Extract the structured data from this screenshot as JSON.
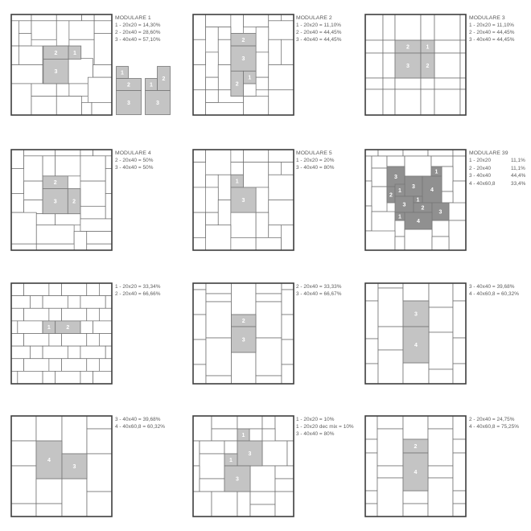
{
  "colors": {
    "tile_highlight": "#c4c4c4",
    "tile_highlight_dark": "#909090",
    "tile_line": "#6a6a6a",
    "border": "#3e3e3e",
    "text": "#5a5a5a"
  },
  "panels": [
    {
      "title": "MODULARE 1",
      "lines": [
        "1 - 20x20 = 14,30%",
        "2 - 20x40 = 28,60%",
        "3 - 40x40 = 57,10%"
      ],
      "tile_labels": [
        "2",
        "1",
        "3"
      ],
      "extra_pieces": [
        {
          "tile_labels": [
            "1",
            "2",
            "3"
          ]
        },
        {
          "tile_labels": [
            "1",
            "2",
            "3"
          ]
        }
      ]
    },
    {
      "title": "MODULARE 2",
      "lines": [
        "1 - 20x20 = 11,10%",
        "2 - 20x40 = 44,45%",
        "3 - 40x40 = 44,45%"
      ],
      "tile_labels": [
        "2",
        "3",
        "2",
        "1"
      ]
    },
    {
      "title": "MODULARE 3",
      "lines": [
        "1 - 20x20 = 11,10%",
        "2 - 20x40 = 44,45%",
        "3 - 40x40 = 44,45%"
      ],
      "tile_labels": [
        "2",
        "1",
        "3",
        "2"
      ]
    },
    {
      "title": "MODULARE 4",
      "lines": [
        "2 - 20x40 = 50%",
        "3 - 40x40 = 50%"
      ],
      "tile_labels": [
        "2",
        "3",
        "2"
      ]
    },
    {
      "title": "MODULARE 5",
      "lines": [
        "1 - 20x20 = 20%",
        "3 - 40x40 = 80%"
      ],
      "tile_labels": [
        "1",
        "3"
      ]
    },
    {
      "title": "MODULARE 39",
      "table": [
        [
          "1 - 20x20",
          "11,1%"
        ],
        [
          "2 - 20x40",
          "11,1%"
        ],
        [
          "3 - 40x40",
          "44,4%"
        ],
        [
          "4 - 40x60,8",
          "33,4%"
        ]
      ],
      "tile_labels": [
        "3",
        "1",
        "3",
        "4",
        "2",
        "1",
        "3",
        "1",
        "2",
        "3",
        "1",
        "4"
      ]
    },
    {
      "lines": [
        "1 - 20x20 = 33,34%",
        "2 - 20x40 = 66,66%"
      ],
      "tile_labels": [
        "1",
        "2"
      ]
    },
    {
      "lines": [
        "2 - 20x40 = 33,33%",
        "3 - 40x40 = 66,67%"
      ],
      "tile_labels": [
        "2",
        "3"
      ]
    },
    {
      "lines": [
        "3 - 40x40 = 39,68%",
        "4 - 40x60,8 = 60,32%"
      ],
      "tile_labels": [
        "3",
        "4"
      ]
    },
    {
      "lines": [
        "3 - 40x40 = 39,68%",
        "4 - 40x60,8 = 60,32%"
      ],
      "tile_labels": [
        "4",
        "3"
      ]
    },
    {
      "lines": [
        "1 - 20x20 = 10%",
        "1 - 20x20 dec mix = 10%",
        "3 - 40x40 = 80%"
      ],
      "tile_labels": [
        "1",
        "3",
        "1",
        "3"
      ]
    },
    {
      "lines": [
        "2 - 20x40 = 24,75%",
        "4 - 40x60,8 = 75,25%"
      ],
      "tile_labels": [
        "2",
        "4"
      ]
    }
  ]
}
